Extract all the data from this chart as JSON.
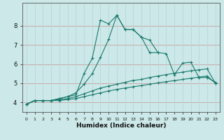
{
  "xlabel": "Humidex (Indice chaleur)",
  "x_values": [
    0,
    1,
    2,
    3,
    4,
    5,
    6,
    7,
    8,
    9,
    10,
    11,
    12,
    13,
    14,
    15,
    16,
    17,
    18,
    19,
    20,
    21,
    22,
    23
  ],
  "line1_y": [
    3.9,
    4.1,
    4.1,
    4.1,
    4.2,
    4.3,
    4.4,
    5.5,
    6.3,
    8.3,
    8.1,
    8.55,
    7.8,
    7.8,
    7.4,
    6.6,
    6.6,
    null,
    null,
    null,
    null,
    null,
    null,
    null
  ],
  "line2_y": [
    3.9,
    4.1,
    4.1,
    4.1,
    4.2,
    4.3,
    4.5,
    4.95,
    5.5,
    6.35,
    7.3,
    8.55,
    7.8,
    7.8,
    7.4,
    7.25,
    6.6,
    6.55,
    5.45,
    6.05,
    6.1,
    5.3,
    5.3,
    5.05
  ],
  "line3_y": [
    3.9,
    4.1,
    4.1,
    4.1,
    4.15,
    4.2,
    4.3,
    4.45,
    4.6,
    4.75,
    4.85,
    4.95,
    5.05,
    5.15,
    5.2,
    5.3,
    5.38,
    5.45,
    5.52,
    5.58,
    5.65,
    5.7,
    5.75,
    5.0
  ],
  "line4_y": [
    3.9,
    4.1,
    4.1,
    4.1,
    4.1,
    4.15,
    4.2,
    4.3,
    4.4,
    4.5,
    4.6,
    4.68,
    4.75,
    4.82,
    4.88,
    4.95,
    5.02,
    5.08,
    5.14,
    5.2,
    5.26,
    5.32,
    5.38,
    5.0
  ],
  "line_color": "#1a7a6e",
  "bg_color": "#cce8e8",
  "plot_bg_color": "#cce8e8",
  "grid_color_h": "#c8a0a0",
  "grid_color_v": "#b8d8d8",
  "ylim": [
    3.5,
    9.2
  ],
  "xlim": [
    -0.5,
    23.5
  ],
  "yticks": [
    4,
    5,
    6,
    7,
    8
  ],
  "xticks": [
    0,
    1,
    2,
    3,
    4,
    5,
    6,
    7,
    8,
    9,
    10,
    11,
    12,
    13,
    14,
    15,
    16,
    17,
    18,
    19,
    20,
    21,
    22,
    23
  ]
}
